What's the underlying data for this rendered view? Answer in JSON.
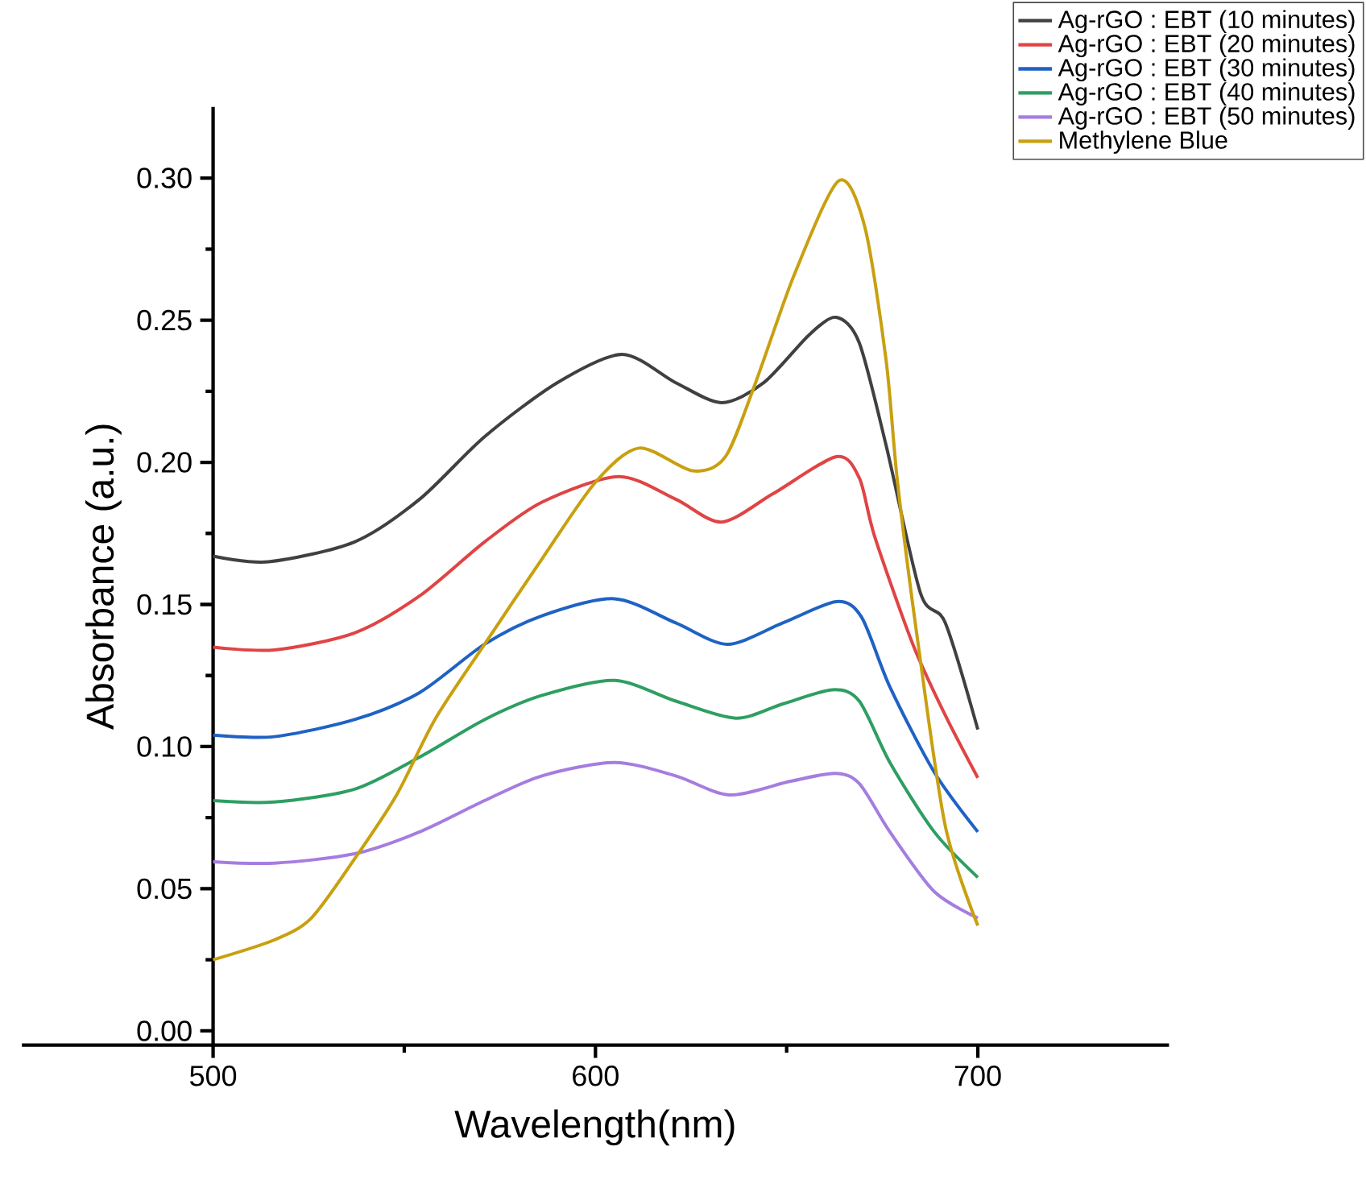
{
  "chart_data": {
    "type": "line",
    "xlabel": "Wavelength(nm)",
    "ylabel": "Absorbance (a.u.)",
    "xlim": [
      450,
      750
    ],
    "ylim": [
      -0.005,
      0.325
    ],
    "xticks": [
      500,
      600,
      700
    ],
    "yticks": [
      {
        "value": 0,
        "label": "0.00"
      },
      {
        "value": 0.05,
        "label": "0.05"
      },
      {
        "value": 0.1,
        "label": "0.10"
      },
      {
        "value": 0.15,
        "label": "0.15"
      },
      {
        "value": 0.2,
        "label": "0.20"
      },
      {
        "value": 0.25,
        "label": "0.25"
      },
      {
        "value": 0.3,
        "label": "0.30"
      }
    ],
    "grid": false,
    "legend": "top right",
    "line_style": "solid",
    "series": [
      {
        "name": "Ag-rGO : EBT (10 minutes)",
        "color": "#404040",
        "x": [
          500,
          514.5,
          537,
          554,
          571,
          590,
          607,
          621,
          633,
          644,
          656,
          663,
          669,
          676,
          685,
          691.5,
          700
        ],
        "values": [
          0.167,
          0.165,
          0.172,
          0.187,
          0.209,
          0.228,
          0.238,
          0.228,
          0.221,
          0.228,
          0.245,
          0.251,
          0.242,
          0.206,
          0.154,
          0.1435,
          0.106
        ]
      },
      {
        "name": "Ag-rGO : EBT (20 minutes)",
        "color": "#e04444",
        "x": [
          500,
          516,
          537,
          554,
          571,
          586,
          606,
          621,
          633,
          646.5,
          663,
          669,
          673,
          683,
          691.5,
          700
        ],
        "values": [
          0.135,
          0.134,
          0.14,
          0.153,
          0.172,
          0.186,
          0.195,
          0.187,
          0.179,
          0.189,
          0.202,
          0.1945,
          0.174,
          0.136,
          0.111,
          0.089
        ]
      },
      {
        "name": "Ag-rGO : EBT (30 minutes)",
        "color": "#1f62c4",
        "x": [
          500,
          516,
          537,
          554,
          571,
          586,
          605,
          621,
          634.5,
          649,
          663,
          669.6,
          677,
          688.6,
          700
        ],
        "values": [
          0.104,
          0.1035,
          0.1095,
          0.119,
          0.136,
          0.146,
          0.152,
          0.1435,
          0.136,
          0.1435,
          0.151,
          0.1455,
          0.121,
          0.091,
          0.07
        ]
      },
      {
        "name": "Ag-rGO : EBT (40 minutes)",
        "color": "#2e9e62",
        "x": [
          500,
          516,
          537,
          554,
          571,
          586,
          605,
          621,
          636.7,
          649,
          662,
          669,
          677,
          688.6,
          700
        ],
        "values": [
          0.081,
          0.0805,
          0.085,
          0.0963,
          0.1095,
          0.118,
          0.1233,
          0.116,
          0.11,
          0.115,
          0.12,
          0.116,
          0.0944,
          0.07,
          0.054
        ]
      },
      {
        "name": "Ag-rGO : EBT (50 minutes)",
        "color": "#a57de0",
        "x": [
          500,
          516,
          537,
          554,
          571,
          586,
          605,
          621,
          635,
          651,
          662.6,
          669,
          677,
          688.6,
          700
        ],
        "values": [
          0.0595,
          0.059,
          0.0623,
          0.07,
          0.081,
          0.0897,
          0.0944,
          0.0897,
          0.083,
          0.0878,
          0.0906,
          0.087,
          0.07,
          0.049,
          0.0397
        ]
      },
      {
        "name": "Methylene Blue",
        "color": "#c8a010",
        "x": [
          500,
          516,
          525.7,
          537,
          548,
          558,
          571,
          586,
          600,
          611.4,
          625.4,
          634,
          642,
          652,
          663.6,
          670.4,
          676,
          679,
          684.4,
          691.5,
          700
        ],
        "values": [
          0.025,
          0.032,
          0.0397,
          0.0605,
          0.083,
          0.1095,
          0.136,
          0.166,
          0.193,
          0.205,
          0.197,
          0.202,
          0.2285,
          0.266,
          0.299,
          0.283,
          0.236,
          0.193,
          0.136,
          0.072,
          0.037
        ]
      }
    ]
  }
}
